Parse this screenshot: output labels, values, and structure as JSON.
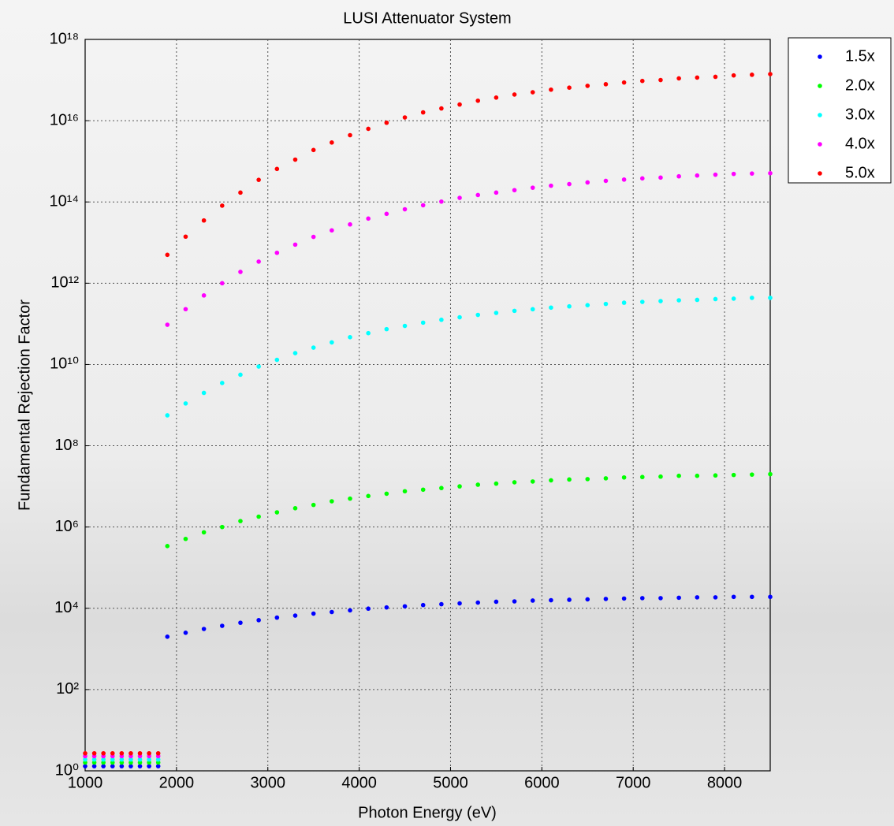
{
  "chart_data": {
    "type": "scatter",
    "title": "LUSI Attenuator System",
    "xlabel": "Photon Energy (eV)",
    "ylabel": "Fundamental Rejection Factor",
    "x": [
      1000,
      1100,
      1200,
      1300,
      1400,
      1500,
      1600,
      1700,
      1800,
      1900,
      2100,
      2300,
      2500,
      2700,
      2900,
      3100,
      3300,
      3500,
      3700,
      3900,
      4100,
      4300,
      4500,
      4700,
      4900,
      5100,
      5300,
      5500,
      5700,
      5900,
      6100,
      6300,
      6500,
      6700,
      6900,
      7100,
      7300,
      7500,
      7700,
      7900,
      8100,
      8300,
      8500
    ],
    "xlim": [
      1000,
      8500
    ],
    "xticks": [
      1000,
      2000,
      3000,
      4000,
      5000,
      6000,
      7000,
      8000
    ],
    "ylim": [
      1,
      1e+18
    ],
    "log_y": true,
    "yticks": [
      {
        "value": 1,
        "label": "10⁰"
      },
      {
        "value": 100,
        "label": "10²"
      },
      {
        "value": 10000.0,
        "label": "10⁴"
      },
      {
        "value": 1000000.0,
        "label": "10⁶"
      },
      {
        "value": 100000000.0,
        "label": "10⁸"
      },
      {
        "value": 10000000000.0,
        "label": "10¹⁰"
      },
      {
        "value": 1000000000000.0,
        "label": "10¹²"
      },
      {
        "value": 100000000000000.0,
        "label": "10¹⁴"
      },
      {
        "value": 1e+16,
        "label": "10¹⁶"
      },
      {
        "value": 1e+18,
        "label": "10¹⁸"
      }
    ],
    "grid": true,
    "legend": "outside-right",
    "series": [
      {
        "name": "1.5x",
        "color": "#0000ff",
        "values": [
          1.3,
          1.3,
          1.3,
          1.3,
          1.3,
          1.3,
          1.3,
          1.3,
          1.3,
          2000,
          2500,
          3100,
          3700,
          4400,
          5100,
          5900,
          6600,
          7400,
          8100,
          8900,
          9800,
          10500,
          11200,
          12000,
          12600,
          13200,
          13800,
          14500,
          14800,
          15500,
          15800,
          16200,
          16600,
          17000,
          17400,
          17800,
          17800,
          18200,
          18600,
          18600,
          19100,
          19100,
          19100
        ]
      },
      {
        "name": "2.0x",
        "color": "#00ff00",
        "values": [
          1.6,
          1.6,
          1.6,
          1.6,
          1.6,
          1.6,
          1.6,
          1.6,
          1.6,
          340000.0,
          510000.0,
          740000.0,
          1000000.0,
          1400000.0,
          1800000.0,
          2300000.0,
          2900000.0,
          3500000.0,
          4300000.0,
          5000000.0,
          5800000.0,
          6600000.0,
          7600000.0,
          8300000.0,
          9100000.0,
          10000000.0,
          11000000.0,
          11700000.0,
          12600000.0,
          13200000.0,
          14100000.0,
          14800000.0,
          15100000.0,
          15800000.0,
          16600000.0,
          17000000.0,
          17400000.0,
          18200000.0,
          18200000.0,
          18600000.0,
          19100000.0,
          19500000.0,
          20000000.0
        ]
      },
      {
        "name": "3.0x",
        "color": "#00ffff",
        "values": [
          1.9,
          1.9,
          1.9,
          1.9,
          1.9,
          1.9,
          1.9,
          1.9,
          1.9,
          560000000.0,
          1100000000.0,
          2000000000.0,
          3500000000.0,
          5600000000.0,
          8900000000.0,
          13000000000.0,
          19000000000.0,
          26000000000.0,
          35000000000.0,
          47000000000.0,
          59000000000.0,
          74000000000.0,
          89000000000.0,
          107000000000.0,
          126000000000.0,
          145000000000.0,
          166000000000.0,
          186000000000.0,
          209000000000.0,
          229000000000.0,
          251000000000.0,
          269000000000.0,
          288000000000.0,
          309000000000.0,
          331000000000.0,
          347000000000.0,
          363000000000.0,
          380000000000.0,
          389000000000.0,
          407000000000.0,
          417000000000.0,
          437000000000.0,
          437000000000.0
        ]
      },
      {
        "name": "4.0x",
        "color": "#ff00ff",
        "values": [
          2.3,
          2.3,
          2.3,
          2.3,
          2.3,
          2.3,
          2.3,
          2.3,
          2.3,
          95000000000.0,
          230000000000.0,
          500000000000.0,
          1000000000000.0,
          1900000000000.0,
          3400000000000.0,
          5600000000000.0,
          8900000000000.0,
          13800000000000.0,
          20000000000000.0,
          28000000000000.0,
          39000000000000.0,
          51000000000000.0,
          66000000000000.0,
          83000000000000.0,
          102000000000000.0,
          126000000000000.0,
          148000000000000.0,
          170000000000000.0,
          195000000000000.0,
          224000000000000.0,
          251000000000000.0,
          275000000000000.0,
          302000000000000.0,
          331000000000000.0,
          355000000000000.0,
          380000000000000.0,
          398000000000000.0,
          427000000000000.0,
          447000000000000.0,
          468000000000000.0,
          490000000000000.0,
          500000000000000.0,
          510000000000000.0
        ]
      },
      {
        "name": "5.0x",
        "color": "#ff0000",
        "values": [
          2.7,
          2.7,
          2.7,
          2.7,
          2.7,
          2.7,
          2.7,
          2.7,
          2.7,
          5000000000000.0,
          14000000000000.0,
          35000000000000.0,
          81000000000000.0,
          170000000000000.0,
          350000000000000.0,
          650000000000000.0,
          1100000000000000.0,
          1900000000000000.0,
          2900000000000000.0,
          4400000000000000.0,
          6300000000000000.0,
          8900000000000000.0,
          1.2e+16,
          1.6e+16,
          2e+16,
          2.5e+16,
          3.1e+16,
          3.7e+16,
          4.4e+16,
          5e+16,
          5.8e+16,
          6.5e+16,
          7.2e+16,
          7.9e+16,
          8.7e+16,
          9.5e+16,
          1e+17,
          1.1e+17,
          1.15e+17,
          1.2e+17,
          1.3e+17,
          1.35e+17,
          1.4e+17
        ]
      }
    ]
  }
}
